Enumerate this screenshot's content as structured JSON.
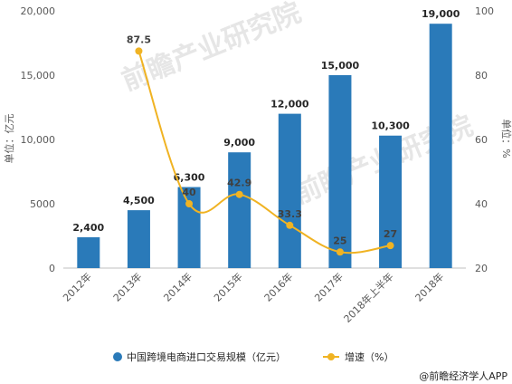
{
  "chart_data": {
    "type": "bar",
    "categories": [
      "2012年",
      "2013年",
      "2014年",
      "2015年",
      "2016年",
      "2017年",
      "2018年上半年",
      "2018年"
    ],
    "series": [
      {
        "name": "中国跨境电商进口交易规模（亿元）",
        "type": "bar",
        "axis": "left",
        "color": "#2a7ab9",
        "values": [
          2400,
          4500,
          6300,
          9000,
          12000,
          15000,
          10300,
          19000
        ],
        "value_labels": [
          "2,400",
          "4,500",
          "6,300",
          "9,000",
          "12,000",
          "15,000",
          "10,300",
          "19,000"
        ]
      },
      {
        "name": "增速（%）",
        "type": "line",
        "axis": "right",
        "color": "#f0b323",
        "values": [
          null,
          87.5,
          40,
          42.9,
          33.3,
          25,
          27,
          null
        ],
        "value_labels": [
          "",
          "87.5",
          "40",
          "42.9",
          "33.3",
          "25",
          "27",
          ""
        ]
      }
    ],
    "left_axis": {
      "label": "单位：亿元",
      "ylim": [
        0,
        20000
      ],
      "ticks": [
        "0",
        "5000",
        "10,000",
        "15,000",
        "20,000"
      ]
    },
    "right_axis": {
      "label": "单位：%",
      "ylim": [
        20,
        100
      ],
      "ticks": [
        "20",
        "40",
        "60",
        "80",
        "100"
      ]
    },
    "legend": "bottom",
    "grid": false
  },
  "watermark": "前瞻产业研究院",
  "credit": "@前瞻经济学人APP"
}
